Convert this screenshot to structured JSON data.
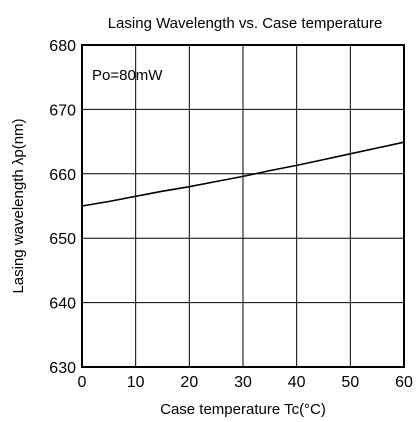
{
  "chart_data": {
    "type": "line",
    "title": "Lasing Wavelength vs. Case temperature",
    "xlabel": "Case temperature Tc(°C)",
    "ylabel": "Lasing wavelength λp(nm)",
    "annotation": "Po=80mW",
    "xlim": [
      0,
      60
    ],
    "ylim": [
      630,
      680
    ],
    "xticks": [
      "0",
      "10",
      "20",
      "30",
      "40",
      "50",
      "60"
    ],
    "yticks": [
      "630",
      "640",
      "650",
      "660",
      "670",
      "680"
    ],
    "grid": true,
    "series": [
      {
        "x": [
          0,
          5,
          10,
          15,
          20,
          25,
          30,
          35,
          40,
          45,
          50,
          55,
          60
        ],
        "values": [
          655.0,
          655.7,
          656.5,
          657.3,
          658.0,
          658.8,
          659.6,
          660.5,
          661.3,
          662.2,
          663.1,
          664.0,
          664.9
        ]
      }
    ],
    "line_color": "#000000"
  }
}
